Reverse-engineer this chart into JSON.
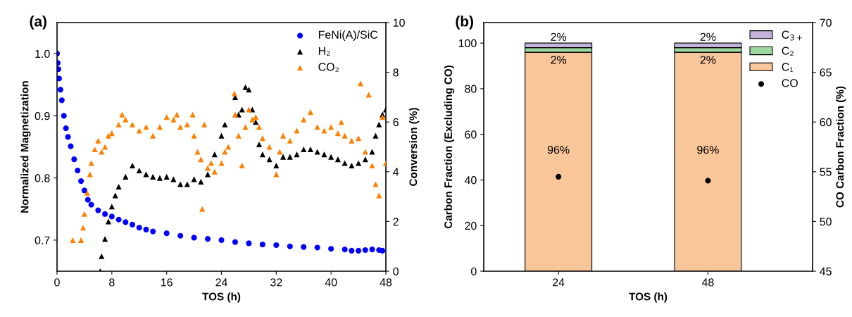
{
  "chart_data": [
    {
      "type": "scatter",
      "title": "(a)",
      "xlabel": "TOS (h)",
      "ylabel": "Normalized Magnetization",
      "y2label": "Conversion (%)",
      "xlim": [
        0,
        48
      ],
      "xticks": [
        0,
        8,
        16,
        24,
        32,
        40,
        48
      ],
      "ylim": [
        0.65,
        1.05
      ],
      "yticks": [
        0.7,
        0.8,
        0.9,
        {
          "value": 1,
          "label": "1.0"
        }
      ],
      "y2lim": [
        0,
        10
      ],
      "y2ticks": [
        0,
        2,
        4,
        6,
        8,
        10
      ],
      "legend": "top right",
      "series": [
        {
          "name": "FeNi(A)/SiC",
          "color": "#0000ff",
          "marker": "circle",
          "axis": "y",
          "x": [
            0,
            0.1,
            0.2,
            0.3,
            0.5,
            0.7,
            1,
            1.3,
            1.6,
            2,
            2.5,
            3,
            3.5,
            4,
            4.5,
            5,
            6,
            7,
            8,
            9,
            10,
            11,
            12,
            13,
            14,
            16,
            18,
            20,
            22,
            24,
            26,
            28,
            30,
            32,
            34,
            36,
            38,
            40,
            42,
            43,
            44,
            45,
            46,
            47,
            47.5
          ],
          "values": [
            1.0,
            0.985,
            0.975,
            0.96,
            0.942,
            0.925,
            0.9,
            0.88,
            0.866,
            0.851,
            0.83,
            0.812,
            0.795,
            0.78,
            0.765,
            0.757,
            0.748,
            0.742,
            0.738,
            0.733,
            0.729,
            0.725,
            0.72,
            0.717,
            0.714,
            0.711,
            0.707,
            0.704,
            0.702,
            0.7,
            0.697,
            0.695,
            0.693,
            0.692,
            0.69,
            0.689,
            0.688,
            0.686,
            0.685,
            0.683,
            0.683,
            0.684,
            0.685,
            0.684,
            0.683
          ]
        },
        {
          "name": "H₂",
          "color": "#000000",
          "marker": "triangle",
          "axis": "y2",
          "x": [
            6.3,
            6.5,
            7,
            7.5,
            8,
            8.5,
            9,
            10,
            11,
            12,
            13,
            14,
            15,
            16,
            17,
            18,
            19,
            20,
            21,
            22,
            23,
            24,
            24.5,
            26,
            26.5,
            27,
            27.5,
            28,
            28.5,
            29,
            29.5,
            30,
            31,
            32,
            33,
            34,
            35,
            36,
            37,
            38,
            39,
            40,
            41,
            42,
            43,
            44,
            45,
            46,
            46.5,
            47,
            47.5,
            48
          ],
          "values": [
            0.0,
            0.6,
            1.3,
            2.0,
            2.6,
            3.05,
            3.4,
            3.8,
            4.25,
            4.05,
            3.9,
            3.8,
            3.75,
            3.8,
            3.7,
            3.5,
            3.5,
            3.7,
            3.6,
            3.9,
            4.7,
            5.45,
            5.9,
            7.0,
            6.3,
            6.5,
            7.4,
            7.3,
            6.5,
            6.0,
            5.1,
            4.7,
            4.5,
            4.25,
            4.6,
            4.6,
            4.7,
            4.9,
            4.9,
            4.8,
            4.7,
            4.6,
            4.5,
            4.35,
            4.25,
            4.35,
            4.5,
            4.8,
            5.45,
            5.9,
            6.3,
            6.5
          ]
        },
        {
          "name": "CO₂",
          "color": "#ff8000",
          "marker": "triangle",
          "axis": "y2",
          "x": [
            2.3,
            3.5,
            3.8,
            4,
            4.4,
            4.8,
            5,
            5.5,
            6,
            6.5,
            7,
            7.5,
            8,
            9,
            9.5,
            10,
            11,
            12,
            13,
            14,
            15,
            16,
            17,
            17.5,
            18,
            19,
            19.8,
            20,
            20.5,
            21,
            21.2,
            21.5,
            22,
            22.5,
            23,
            24,
            24.5,
            25,
            25.9,
            26,
            26.5,
            27,
            27.5,
            28,
            28.5,
            29,
            29.5,
            30,
            31,
            32,
            32.5,
            33,
            34,
            35,
            36,
            37,
            38,
            39,
            40,
            41,
            41.5,
            42,
            43,
            44,
            44.3,
            45,
            45.5,
            46,
            46.5,
            47,
            47.5,
            48
          ],
          "values": [
            1.25,
            1.25,
            1.75,
            2.3,
            3.15,
            3.9,
            4.35,
            4.9,
            5.25,
            4.8,
            5.0,
            5.45,
            5.55,
            5.9,
            6.3,
            6.1,
            5.9,
            5.65,
            5.8,
            5.45,
            5.8,
            6.2,
            6.1,
            6.3,
            5.8,
            5.9,
            6.3,
            5.45,
            4.8,
            4.5,
            2.5,
            5.9,
            4.15,
            4.35,
            4.0,
            4.35,
            4.8,
            5.0,
            7.15,
            6.3,
            5.45,
            4.25,
            5.8,
            6.5,
            6.1,
            6.2,
            5.8,
            5.35,
            5.0,
            3.9,
            4.8,
            5.45,
            5.25,
            5.65,
            6.1,
            6.4,
            5.8,
            5.65,
            5.8,
            5.55,
            6.0,
            5.45,
            5.25,
            5.35,
            7.55,
            4.8,
            7.1,
            4.25,
            3.5,
            3.05,
            6.2,
            4.35
          ]
        }
      ]
    },
    {
      "type": "bar",
      "stacked": true,
      "title": "(b)",
      "xlabel": "TOS (h)",
      "ylabel": "Carbon Fraction (Excluding CO)",
      "y2label": "CO Carbon Fraction (%)",
      "categories": [
        "24",
        "48"
      ],
      "ylim": [
        0,
        109
      ],
      "yticks": [
        0,
        20,
        40,
        60,
        80,
        100
      ],
      "y2lim": [
        45,
        70
      ],
      "y2ticks": [
        45,
        50,
        55,
        60,
        65,
        70
      ],
      "legend": "top right",
      "series": [
        {
          "name": "C₁",
          "color": "#f9c69a",
          "values": [
            96,
            96
          ],
          "value_labels": [
            "96%",
            "96%"
          ]
        },
        {
          "name": "C₂",
          "color": "#9fd89f",
          "values": [
            2,
            2
          ],
          "value_labels": [
            "2%",
            "2%"
          ]
        },
        {
          "name": "C$_{3+}$",
          "color": "#c3b3da",
          "values": [
            2,
            2
          ],
          "value_labels": [
            "2%",
            "2%"
          ]
        },
        {
          "name": "CO",
          "type": "scatter",
          "color": "#000000",
          "marker": "circle",
          "axis": "y2",
          "values": [
            54.5,
            54.1
          ]
        }
      ]
    }
  ]
}
